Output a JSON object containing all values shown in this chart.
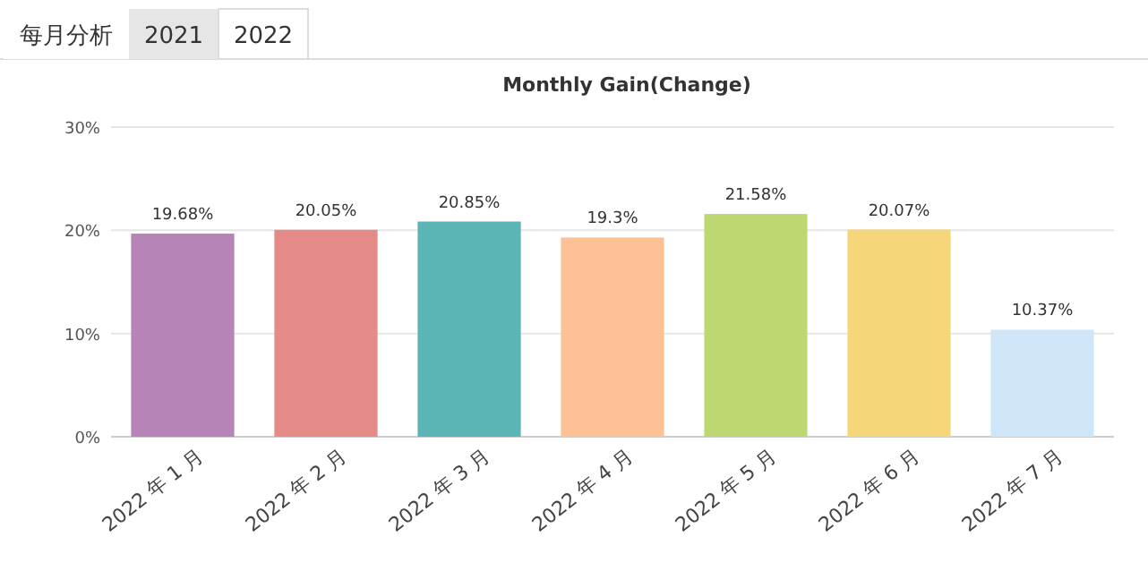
{
  "chart_data": {
    "type": "bar",
    "title": "Monthly Gain(Change)",
    "annotations": [
      "每月分析",
      "2021",
      "2022"
    ],
    "categories": [
      "2022 年 1 月",
      "2022 年 2 月",
      "2022 年 3 月",
      "2022 年 4 月",
      "2022 年 5 月",
      "2022 年 6 月",
      "2022 年 7 月"
    ],
    "values": [
      19.68,
      20.05,
      20.85,
      19.3,
      21.58,
      20.07,
      10.37
    ],
    "colors": [
      "#b784b7",
      "#e48a87",
      "#5bb5b4",
      "#fec196",
      "#bdd870",
      "#f5d678",
      "#cfe6f9"
    ],
    "value_labels": [
      "19.68%",
      "20.05%",
      "20.85%",
      "19.3%",
      "21.58%",
      "20.07%",
      "10.37%"
    ],
    "ylim": [
      0,
      30
    ],
    "yticks": [
      {
        "value": 0,
        "label": "0%"
      },
      {
        "value": 10,
        "label": "10%"
      },
      {
        "value": 20,
        "label": "20%"
      },
      {
        "value": 30,
        "label": "30%"
      }
    ],
    "grid": "y"
  }
}
